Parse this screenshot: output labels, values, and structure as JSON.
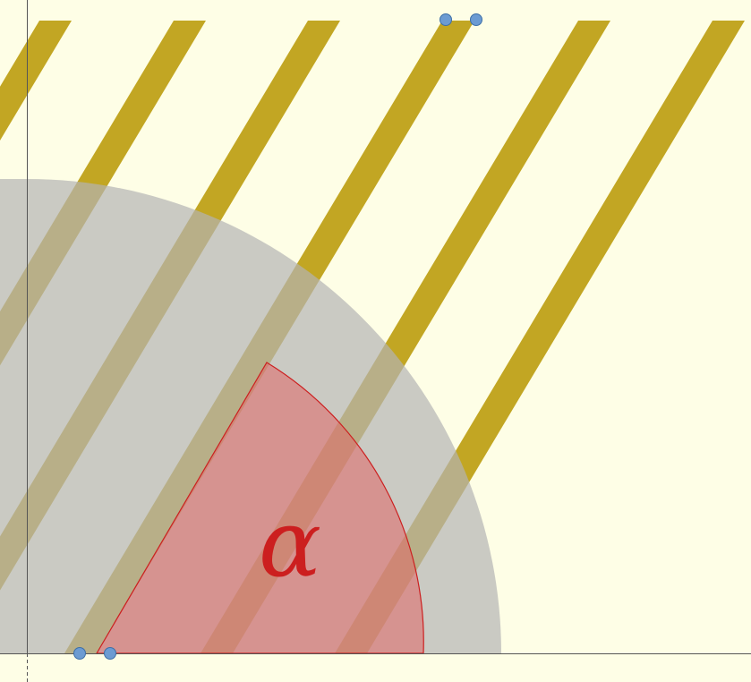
{
  "colors": {
    "background": "#FEFEE6",
    "stripe": "#C2A623",
    "disc": "#B4B4B4",
    "disc_opacity": 0.7,
    "sector_fill": "#E06666",
    "sector_opacity": 0.55,
    "sector_stroke": "#CC1F1F",
    "label": "#CC1F1F",
    "axis": "#555555",
    "handle_fill": "#6C9BD2",
    "handle_stroke": "#3D6FA8"
  },
  "angle": {
    "label": "α"
  },
  "handles": {
    "top": [
      "top-handle-left",
      "top-handle-right"
    ],
    "bottom": [
      "bottom-handle-left",
      "bottom-handle-right"
    ]
  }
}
